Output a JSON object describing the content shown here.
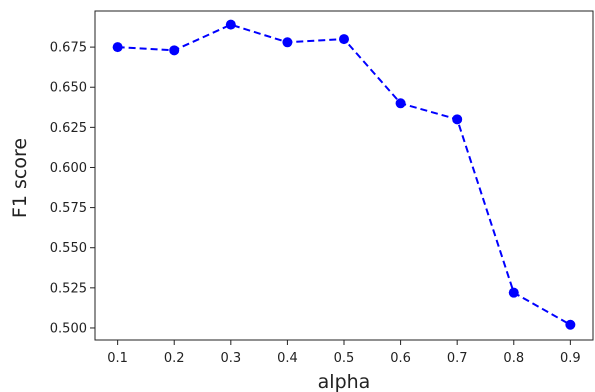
{
  "chart_data": {
    "type": "line",
    "title": "",
    "xlabel": "alpha",
    "ylabel": "F1 score",
    "x": [
      0.1,
      0.2,
      0.3,
      0.4,
      0.5,
      0.6,
      0.7,
      0.8,
      0.9
    ],
    "x_tick_labels": [
      "0.1",
      "0.2",
      "0.3",
      "0.4",
      "0.5",
      "0.6",
      "0.7",
      "0.8",
      "0.9"
    ],
    "xlim": [
      0.06,
      0.94
    ],
    "y_ticks": [
      0.5,
      0.525,
      0.55,
      0.575,
      0.6,
      0.625,
      0.65,
      0.675
    ],
    "y_tick_labels": [
      "0.500",
      "0.525",
      "0.550",
      "0.575",
      "0.600",
      "0.625",
      "0.650",
      "0.675"
    ],
    "ylim": [
      0.4925,
      0.6975
    ],
    "grid": false,
    "legend": "none",
    "series": [
      {
        "values": [
          0.675,
          0.673,
          0.689,
          0.678,
          0.68,
          0.64,
          0.63,
          0.522,
          0.502
        ],
        "color": "#0000ff",
        "line_style": "dashed",
        "marker": "circle"
      }
    ]
  }
}
